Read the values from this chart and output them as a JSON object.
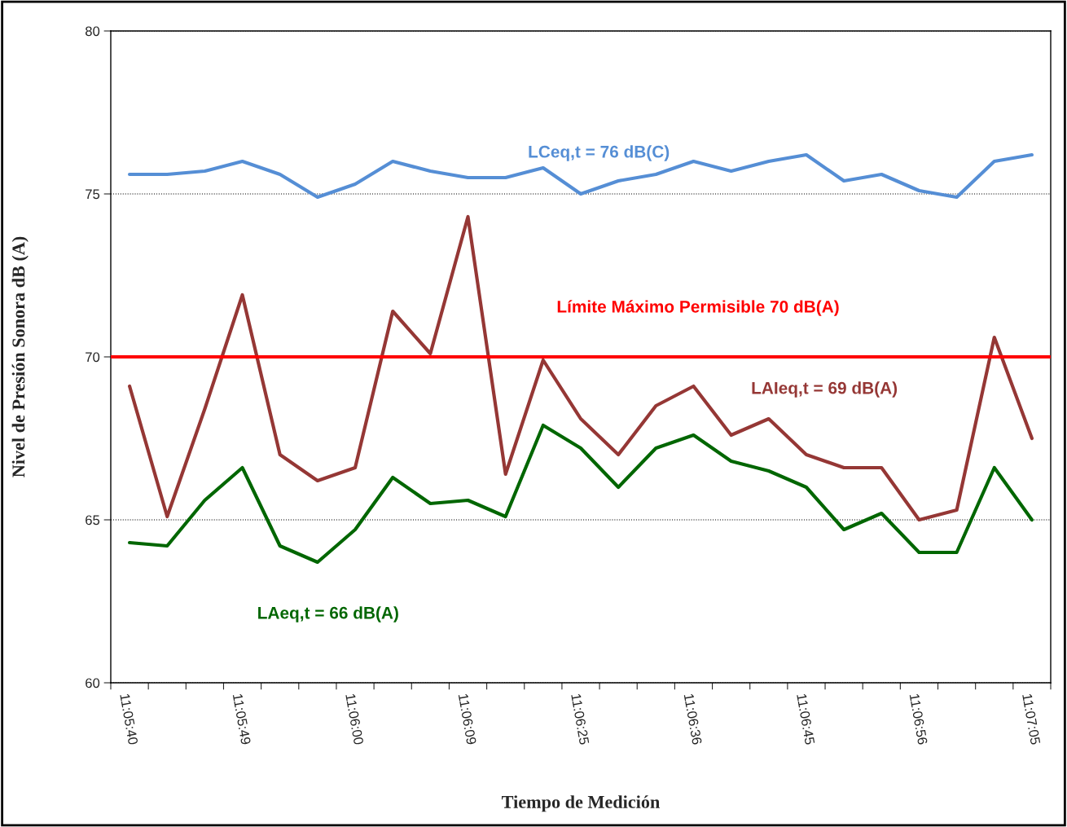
{
  "chart_data": {
    "type": "line",
    "xlabel": "Tiempo de Medición",
    "ylabel": "Nivel de Presión Sonora dB (A)",
    "categories": [
      "11:05:40",
      null,
      null,
      "11:05:49",
      null,
      null,
      "11:06:00",
      null,
      null,
      "11:06:09",
      null,
      null,
      "11:06:25",
      null,
      null,
      "11:06:36",
      null,
      null,
      "11:06:45",
      null,
      null,
      "11:06:56",
      null,
      null,
      "11:07:05"
    ],
    "series": [
      {
        "name": "LCeq,t = 76 dB(C)",
        "color": "#558ed5",
        "values": [
          75.6,
          75.6,
          75.7,
          76.0,
          75.6,
          74.9,
          75.3,
          76.0,
          75.7,
          75.5,
          75.5,
          75.8,
          75.0,
          75.4,
          75.6,
          76.0,
          75.7,
          76.0,
          76.2,
          75.4,
          75.6,
          75.1,
          74.9,
          76.0,
          76.2
        ]
      },
      {
        "name": "LAIeq,t = 69 dB(A)",
        "color": "#953735",
        "values": [
          69.1,
          65.1,
          68.4,
          71.9,
          67.0,
          66.2,
          66.6,
          71.4,
          70.1,
          74.3,
          66.4,
          69.9,
          68.1,
          67.0,
          68.5,
          69.1,
          67.6,
          68.1,
          67.0,
          66.6,
          66.6,
          65.0,
          65.3,
          70.6,
          67.5
        ]
      },
      {
        "name": "LAeq,t = 66 dB(A)",
        "color": "#006600",
        "values": [
          64.3,
          64.2,
          65.6,
          66.6,
          64.2,
          63.7,
          64.7,
          66.3,
          65.5,
          65.6,
          65.1,
          67.9,
          67.2,
          66.0,
          67.2,
          67.6,
          66.8,
          66.5,
          66.0,
          64.7,
          65.2,
          64.0,
          64.0,
          66.6,
          65.0
        ]
      }
    ],
    "ref_lines": [
      {
        "axis": "y",
        "value": 70,
        "label": "Límite Máximo Permisible 70 dB(A)",
        "color": "#ff0000",
        "line_style": "solid"
      }
    ],
    "ylim": [
      60,
      80
    ],
    "yticks": [
      60,
      65,
      70,
      75,
      80
    ],
    "grid": "y",
    "legend": false,
    "marker": "none",
    "line_style": "solid"
  }
}
